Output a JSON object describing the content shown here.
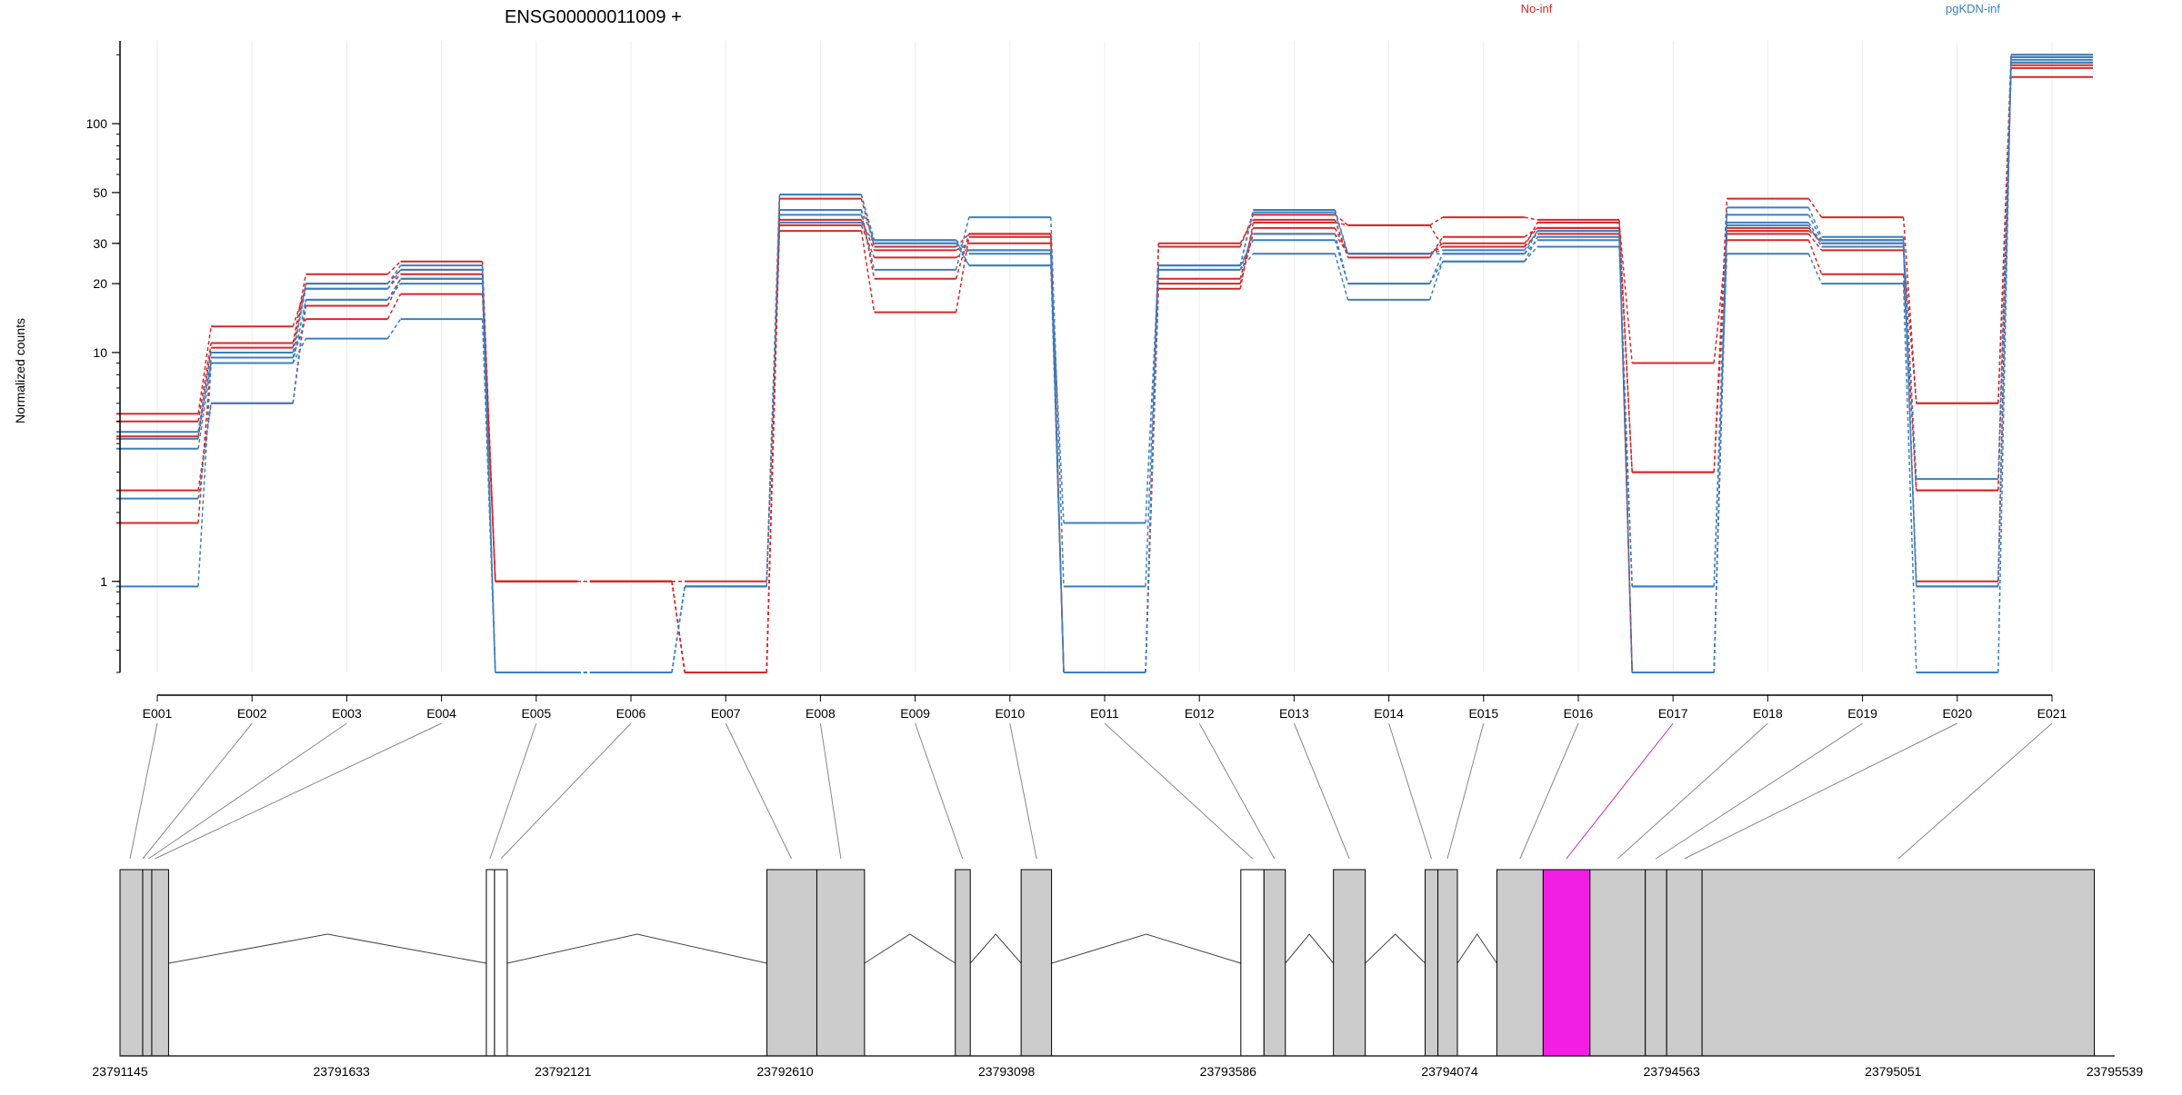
{
  "chart_data": {
    "type": "line",
    "title": "ENSG00000011009 +",
    "xlabel": "",
    "ylabel": "Normalized counts",
    "y_scale": "log",
    "y_ticks": [
      1,
      10,
      20,
      30,
      50,
      100
    ],
    "ylim": [
      0.4,
      230
    ],
    "grid": "vertical",
    "categories": [
      "E001",
      "E002",
      "E003",
      "E004",
      "E005",
      "E006",
      "E007",
      "E008",
      "E009",
      "E010",
      "E011",
      "E012",
      "E013",
      "E014",
      "E015",
      "E016",
      "E017",
      "E018",
      "E019",
      "E020",
      "E021"
    ],
    "highlighted_exon": "E017",
    "legend": [
      {
        "name": "No-inf",
        "color": "#d62728"
      },
      {
        "name": "pgKDN-inf",
        "color": "#3b7fbf"
      }
    ],
    "series": [
      {
        "group": "No-inf",
        "color": "#d62728",
        "values": [
          5.0,
          11.0,
          22.0,
          25.0,
          1.0,
          1.0,
          0.4,
          36.0,
          26.0,
          28.0,
          0.4,
          20.0,
          33.0,
          27.0,
          29.0,
          33.0,
          0.4,
          34.0,
          31.0,
          2.5,
          180.0
        ]
      },
      {
        "group": "No-inf",
        "color": "#d62728",
        "values": [
          4.3,
          10.5,
          20.0,
          23.0,
          1.0,
          1.0,
          0.4,
          38.0,
          28.0,
          30.0,
          0.4,
          21.0,
          35.0,
          27.0,
          30.0,
          35.0,
          0.4,
          35.0,
          30.0,
          1.0,
          185.0
        ]
      },
      {
        "group": "No-inf",
        "color": "#d62728",
        "values": [
          2.5,
          6.0,
          16.0,
          21.0,
          1.0,
          1.0,
          1.0,
          34.0,
          15.0,
          32.0,
          0.4,
          29.0,
          40.0,
          36.0,
          39.0,
          38.0,
          3.0,
          47.0,
          39.0,
          6.0,
          160.0
        ]
      },
      {
        "group": "No-inf",
        "color": "#d62728",
        "values": [
          1.8,
          9.5,
          14.0,
          18.0,
          1.0,
          1.0,
          0.4,
          42.0,
          21.0,
          33.0,
          0.4,
          19.0,
          37.0,
          36.0,
          29.0,
          37.0,
          9.0,
          31.0,
          22.0,
          2.5,
          175.0
        ]
      },
      {
        "group": "No-inf",
        "color": "#d62728",
        "values": [
          5.4,
          13.0,
          19.0,
          22.0,
          1.0,
          1.0,
          0.4,
          47.0,
          29.0,
          33.0,
          0.4,
          30.0,
          38.0,
          26.0,
          32.0,
          35.0,
          3.0,
          33.0,
          28.0,
          6.0,
          200.0
        ]
      },
      {
        "group": "pgKDN-inf",
        "color": "#3b7fbf",
        "values": [
          0.95,
          9.0,
          11.5,
          14.0,
          0.4,
          0.4,
          0.95,
          40.0,
          23.0,
          39.0,
          0.95,
          23.0,
          27.0,
          17.0,
          25.0,
          29.0,
          0.95,
          27.0,
          20.0,
          0.4,
          195.0
        ]
      },
      {
        "group": "pgKDN-inf",
        "color": "#3b7fbf",
        "values": [
          2.3,
          6.0,
          17.0,
          20.0,
          0.4,
          0.4,
          0.95,
          37.0,
          30.0,
          24.0,
          1.8,
          24.0,
          31.0,
          20.0,
          27.0,
          31.0,
          0.95,
          40.0,
          31.0,
          2.8,
          190.0
        ]
      },
      {
        "group": "pgKDN-inf",
        "color": "#3b7fbf",
        "values": [
          4.5,
          10.0,
          19.0,
          23.0,
          0.4,
          0.4,
          0.95,
          42.0,
          31.0,
          27.0,
          0.4,
          23.0,
          33.0,
          20.0,
          25.0,
          32.0,
          0.4,
          36.0,
          29.0,
          0.95,
          185.0
        ]
      },
      {
        "group": "pgKDN-inf",
        "color": "#3b7fbf",
        "values": [
          3.8,
          9.0,
          17.0,
          21.0,
          0.4,
          0.4,
          0.95,
          49.0,
          30.0,
          28.0,
          0.4,
          24.0,
          42.0,
          27.0,
          27.0,
          34.0,
          0.4,
          43.0,
          32.0,
          0.95,
          200.0
        ]
      },
      {
        "group": "pgKDN-inf",
        "color": "#3b7fbf",
        "values": [
          4.2,
          9.5,
          20.0,
          24.0,
          0.4,
          0.4,
          0.95,
          49.0,
          31.0,
          24.0,
          0.4,
          24.0,
          41.0,
          27.0,
          28.0,
          34.0,
          0.4,
          37.0,
          30.0,
          0.95,
          185.0
        ]
      }
    ],
    "genomic_axis_ticks": [
      "23791145",
      "23791633",
      "23792121",
      "23792610",
      "23793098",
      "23793586",
      "23794074",
      "23794563",
      "23795051",
      "23795539"
    ],
    "gene_model": {
      "exon_color": "#cccccc",
      "highlight_color": "#f21ee3",
      "blocks": [
        {
          "start": 23791145,
          "end": 23791195,
          "fill": "gray"
        },
        {
          "start": 23791195,
          "end": 23791195,
          "fill": "gray"
        },
        {
          "start": 23791195,
          "end": 23791215,
          "fill": "gray"
        },
        {
          "start": 23791215,
          "end": 23791252,
          "fill": "gray"
        },
        {
          "start": 23791952,
          "end": 23791970,
          "fill": "white"
        },
        {
          "start": 23791970,
          "end": 23791998,
          "fill": "white"
        },
        {
          "start": 23792570,
          "end": 23792680,
          "fill": "gray"
        },
        {
          "start": 23792680,
          "end": 23792785,
          "fill": "gray"
        },
        {
          "start": 23792985,
          "end": 23793018,
          "fill": "gray"
        },
        {
          "start": 23793130,
          "end": 23793197,
          "fill": "gray"
        },
        {
          "start": 23793614,
          "end": 23793665,
          "fill": "white"
        },
        {
          "start": 23793665,
          "end": 23793712,
          "fill": "gray"
        },
        {
          "start": 23793818,
          "end": 23793888,
          "fill": "gray"
        },
        {
          "start": 23794020,
          "end": 23794048,
          "fill": "gray"
        },
        {
          "start": 23794048,
          "end": 23794091,
          "fill": "gray"
        },
        {
          "start": 23794178,
          "end": 23794280,
          "fill": "gray"
        },
        {
          "start": 23794280,
          "end": 23794383,
          "fill": "magenta"
        },
        {
          "start": 23794383,
          "end": 23794505,
          "fill": "gray"
        },
        {
          "start": 23794505,
          "end": 23794552,
          "fill": "gray"
        },
        {
          "start": 23794552,
          "end": 23794630,
          "fill": "gray"
        },
        {
          "start": 23794630,
          "end": 23795494,
          "fill": "gray"
        }
      ],
      "exon_connectors": [
        23791167,
        23791195,
        23791208,
        23791222,
        23791960,
        23791984,
        23792624,
        23792733,
        23793001,
        23793164,
        23793640,
        23793688,
        23793853,
        23794034,
        23794069,
        23794229,
        23794331,
        23794444,
        23794528,
        23794591,
        23795062
      ],
      "introns": [
        {
          "start": 23791252,
          "end": 23791952
        },
        {
          "start": 23791998,
          "end": 23792570
        },
        {
          "start": 23792785,
          "end": 23792985
        },
        {
          "start": 23793018,
          "end": 23793130
        },
        {
          "start": 23793197,
          "end": 23793614
        },
        {
          "start": 23793712,
          "end": 23793818
        },
        {
          "start": 23793888,
          "end": 23794020
        },
        {
          "start": 23794091,
          "end": 23794178
        }
      ]
    }
  }
}
